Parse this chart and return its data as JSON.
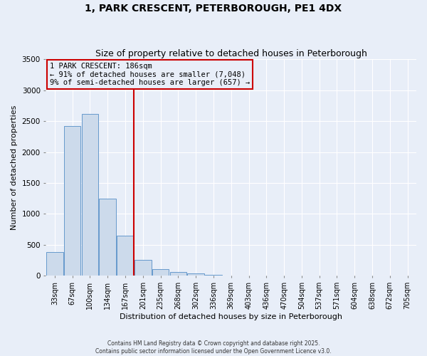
{
  "title": "1, PARK CRESCENT, PETERBOROUGH, PE1 4DX",
  "subtitle": "Size of property relative to detached houses in Peterborough",
  "xlabel": "Distribution of detached houses by size in Peterborough",
  "ylabel": "Number of detached properties",
  "bar_color": "#ccdaeb",
  "bar_edge_color": "#6699cc",
  "background_color": "#e8eef8",
  "grid_color": "#ffffff",
  "categories": [
    "33sqm",
    "67sqm",
    "100sqm",
    "134sqm",
    "167sqm",
    "201sqm",
    "235sqm",
    "268sqm",
    "302sqm",
    "336sqm",
    "369sqm",
    "403sqm",
    "436sqm",
    "470sqm",
    "504sqm",
    "537sqm",
    "571sqm",
    "604sqm",
    "638sqm",
    "672sqm",
    "705sqm"
  ],
  "values": [
    390,
    2420,
    2620,
    1250,
    650,
    260,
    110,
    60,
    40,
    20,
    10,
    0,
    0,
    0,
    0,
    0,
    0,
    0,
    0,
    0,
    0
  ],
  "ylim": [
    0,
    3500
  ],
  "yticks": [
    0,
    500,
    1000,
    1500,
    2000,
    2500,
    3000,
    3500
  ],
  "vline_color": "#cc0000",
  "annotation_title": "1 PARK CRESCENT: 186sqm",
  "annotation_line1": "← 91% of detached houses are smaller (7,048)",
  "annotation_line2": "9% of semi-detached houses are larger (657) →",
  "annotation_box_color": "#cc0000",
  "title_fontsize": 10,
  "subtitle_fontsize": 9,
  "tick_fontsize": 7,
  "ylabel_fontsize": 8,
  "xlabel_fontsize": 8,
  "annotation_fontsize": 7.5,
  "footer_fontsize": 5.5
}
